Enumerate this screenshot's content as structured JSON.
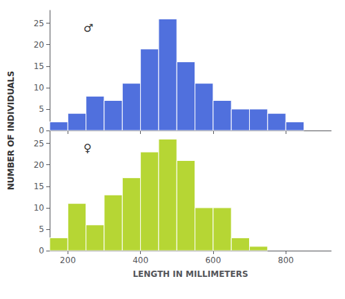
{
  "chart_data": [
    {
      "type": "histogram",
      "annotations": [
        "♂"
      ],
      "bins": [
        150,
        200,
        250,
        300,
        350,
        400,
        450,
        500,
        550,
        600,
        650,
        700,
        750,
        800,
        850
      ],
      "values": [
        2,
        4,
        8,
        7,
        11,
        19,
        26,
        16,
        11,
        7,
        5,
        5,
        4,
        2
      ],
      "xlim": [
        150,
        925
      ],
      "ylim": [
        0,
        28
      ],
      "xticks": [
        200,
        400,
        600,
        800
      ],
      "yticks": [
        0,
        5,
        10,
        15,
        20,
        25
      ],
      "grid": false,
      "tick_labels": "y"
    },
    {
      "type": "histogram",
      "annotations": [
        "♀"
      ],
      "xlabel": "LENGTH IN MILLIMETERS",
      "ylabel": "NUMBER OF INDIVIDUALS",
      "bins": [
        150,
        200,
        250,
        300,
        350,
        400,
        450,
        500,
        550,
        600,
        650,
        700,
        750
      ],
      "values": [
        3,
        11,
        6,
        13,
        17,
        23,
        26,
        21,
        10,
        10,
        3,
        1
      ],
      "xlim": [
        150,
        925
      ],
      "ylim": [
        0,
        28
      ],
      "xticks": [
        200,
        400,
        600,
        800
      ],
      "yticks": [
        0,
        5,
        10,
        15,
        20,
        25
      ],
      "grid": false
    }
  ]
}
